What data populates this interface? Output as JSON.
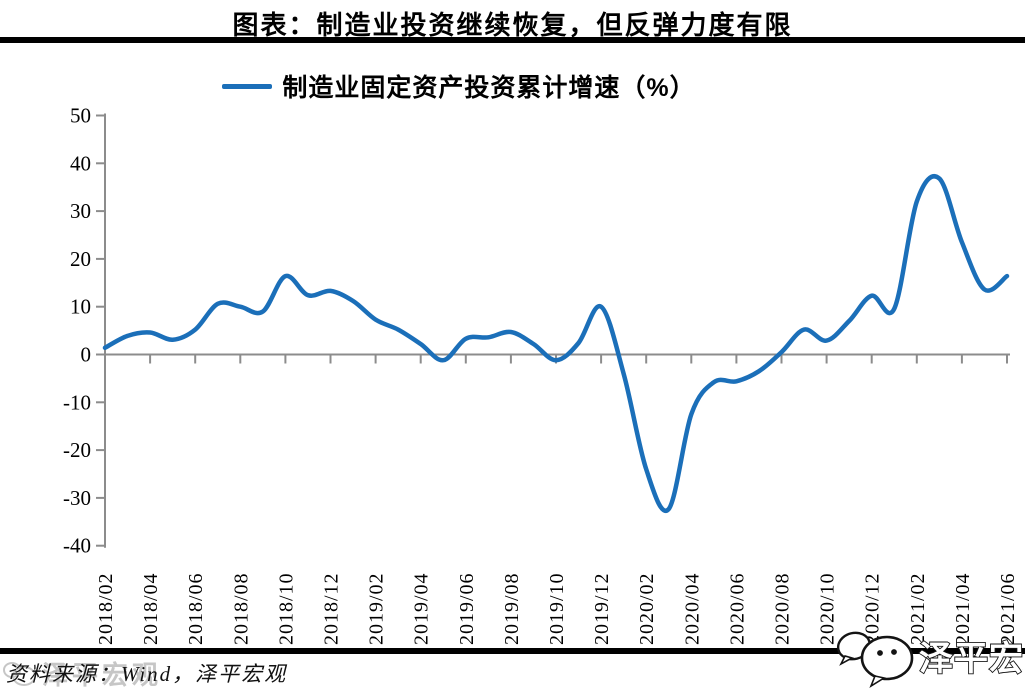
{
  "header": {
    "title": "图表：制造业投资继续恢复，但反弹力度有限"
  },
  "footer": {
    "source": "资料来源：Wind，泽平宏观",
    "watermark": "泽平宏观"
  },
  "chart_data": {
    "type": "line",
    "title": "图表：制造业投资继续恢复，但反弹力度有限",
    "legend": "制造业固定资产投资累计增速（%）",
    "legend_position": "top-center",
    "grid": false,
    "ylim": [
      -40,
      50
    ],
    "ytick_step": 10,
    "yticks": [
      50,
      40,
      30,
      20,
      10,
      0,
      -10,
      -20,
      -30,
      -40
    ],
    "x_tick_labels": [
      "2018/02",
      "2018/04",
      "2018/06",
      "2018/08",
      "2018/10",
      "2018/12",
      "2019/02",
      "2019/04",
      "2019/06",
      "2019/08",
      "2019/10",
      "2019/12",
      "2020/02",
      "2020/04",
      "2020/06",
      "2020/08",
      "2020/10",
      "2020/12",
      "2021/02",
      "2021/04",
      "2021/06"
    ],
    "axis_color": "#8c8c8c",
    "series": [
      {
        "name": "制造业固定资产投资累计增速（%）",
        "color": "#1b6fb9",
        "x": [
          "2018/02",
          "2018/03",
          "2018/04",
          "2018/05",
          "2018/06",
          "2018/07",
          "2018/08",
          "2018/09",
          "2018/10",
          "2018/11",
          "2018/12",
          "2019/01",
          "2019/02",
          "2019/03",
          "2019/04",
          "2019/05",
          "2019/06",
          "2019/07",
          "2019/08",
          "2019/09",
          "2019/10",
          "2019/11",
          "2019/12",
          "2020/01",
          "2020/02",
          "2020/03",
          "2020/04",
          "2020/05",
          "2020/06",
          "2020/07",
          "2020/08",
          "2020/09",
          "2020/10",
          "2020/11",
          "2020/12",
          "2021/01",
          "2021/02",
          "2021/03",
          "2021/04",
          "2021/05",
          "2021/06"
        ],
        "values": [
          1.4,
          3.9,
          4.6,
          3.1,
          5.2,
          10.6,
          10.0,
          9.0,
          16.4,
          12.4,
          13.3,
          11.2,
          7.3,
          5.2,
          2.2,
          -1.2,
          3.3,
          3.6,
          4.7,
          2.2,
          -1.2,
          2.4,
          10.0,
          -4.0,
          -24.0,
          -32.3,
          -12.5,
          -5.8,
          -5.6,
          -3.5,
          0.5,
          5.2,
          2.9,
          7.0,
          12.3,
          9.6,
          32.0,
          36.8,
          23.5,
          13.6,
          16.4
        ]
      }
    ]
  }
}
